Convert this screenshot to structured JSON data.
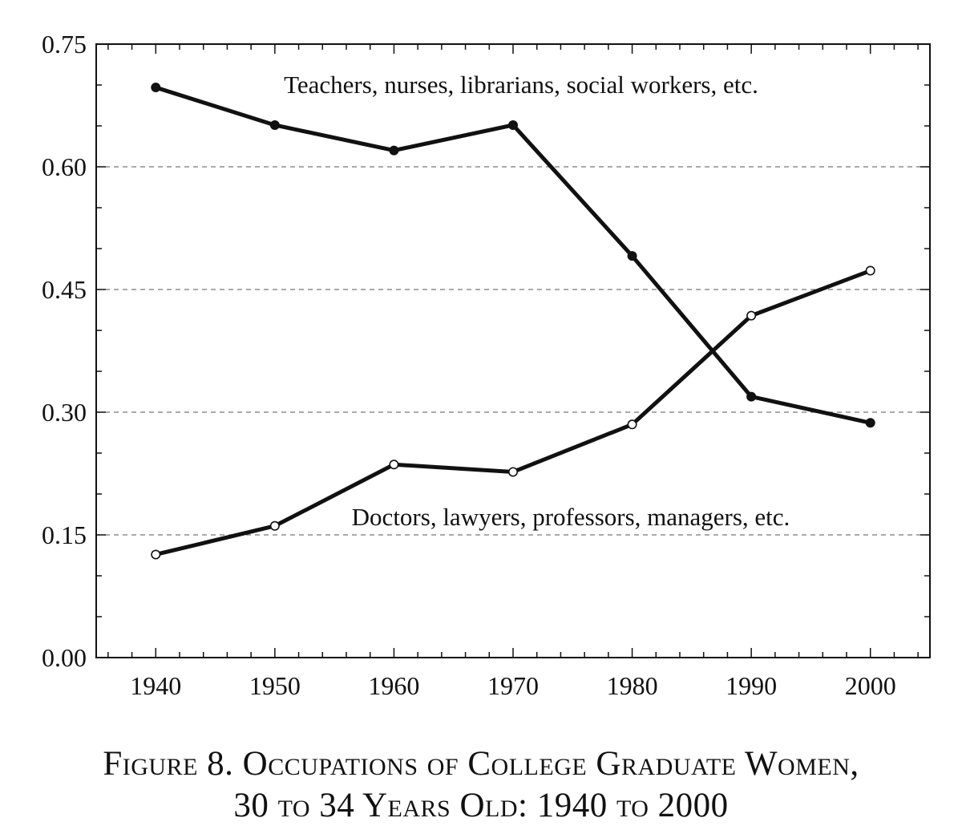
{
  "chart_data": {
    "type": "line",
    "x": [
      1940,
      1950,
      1960,
      1970,
      1980,
      1990,
      2000
    ],
    "xticks": [
      "1940",
      "1950",
      "1960",
      "1970",
      "1980",
      "1990",
      "2000"
    ],
    "xlim": [
      1935,
      2005
    ],
    "ylim": [
      0,
      0.75
    ],
    "yticks": [
      "0.00",
      "0.15",
      "0.30",
      "0.45",
      "0.60",
      "0.75"
    ],
    "grid": "dashed horizontal at 0.15, 0.30, 0.45, 0.60",
    "series": [
      {
        "name": "Teachers, nurses, librarians, social workers, etc.",
        "marker": "filled",
        "values": [
          0.697,
          0.651,
          0.62,
          0.651,
          0.491,
          0.319,
          0.287
        ]
      },
      {
        "name": "Doctors, lawyers, professors, managers, etc.",
        "marker": "open",
        "values": [
          0.126,
          0.161,
          0.236,
          0.227,
          0.285,
          0.418,
          0.473
        ]
      }
    ]
  },
  "caption": {
    "line1": "Figure 8. Occupations of College Graduate Women,",
    "line2": "30 to 34 Years Old: 1940 to 2000"
  }
}
